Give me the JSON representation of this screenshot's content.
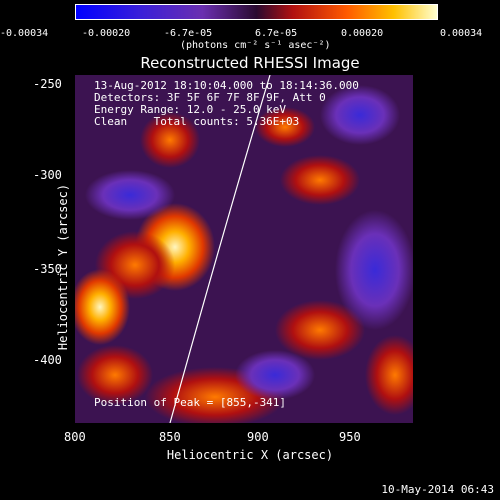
{
  "colorbar": {
    "ticks": [
      "-0.00034",
      "-0.00020",
      "-6.7e-05",
      "6.7e-05",
      "0.00020",
      "0.00034"
    ],
    "unit": "(photons cm⁻² s⁻¹ asec⁻²)"
  },
  "title": "Reconstructed RHESSI Image",
  "annotations": {
    "time": "13-Aug-2012 18:10:04.000 to 18:14:36.000",
    "detectors": "Detectors: 3F 5F 6F 7F 8F 9F, Att 0",
    "energy": "Energy Range: 12.0 - 25.0 keV",
    "clean": "Clean    Total counts: 5.36E+03",
    "peak": "Position of Peak = [855,-341]"
  },
  "axes": {
    "xlabel": "Heliocentric X (arcsec)",
    "ylabel": "Heliocentric Y (arcsec)",
    "xticks": [
      "800",
      "850",
      "900",
      "950"
    ],
    "yticks": [
      "-250",
      "-300",
      "-350",
      "-400"
    ]
  },
  "footer": {
    "timestamp": "10-May-2014 06:43"
  }
}
